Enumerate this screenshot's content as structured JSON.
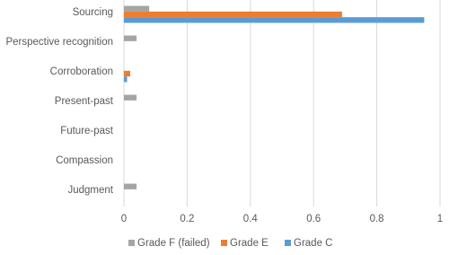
{
  "chart_data": {
    "type": "hbar",
    "categories": [
      "Sourcing",
      "Perspective recognition",
      "Corroboration",
      "Present-past",
      "Future-past",
      "Compassion",
      "Judgment"
    ],
    "series": [
      {
        "name": "Grade F (failed)",
        "color": "#a5a5a5",
        "values": [
          0.08,
          0.04,
          0,
          0.04,
          0,
          0,
          0.04
        ]
      },
      {
        "name": "Grade E",
        "color": "#ed7d31",
        "values": [
          0.69,
          0,
          0.02,
          0,
          0,
          0,
          0
        ]
      },
      {
        "name": "Grade C",
        "color": "#5b9bd5",
        "values": [
          0.95,
          0,
          0.01,
          0,
          0,
          0,
          0
        ]
      }
    ],
    "xlim": [
      0,
      1
    ],
    "xticks": [
      0,
      0.2,
      0.4,
      0.6,
      0.8,
      1
    ],
    "grid": true,
    "legend": "bottom"
  }
}
